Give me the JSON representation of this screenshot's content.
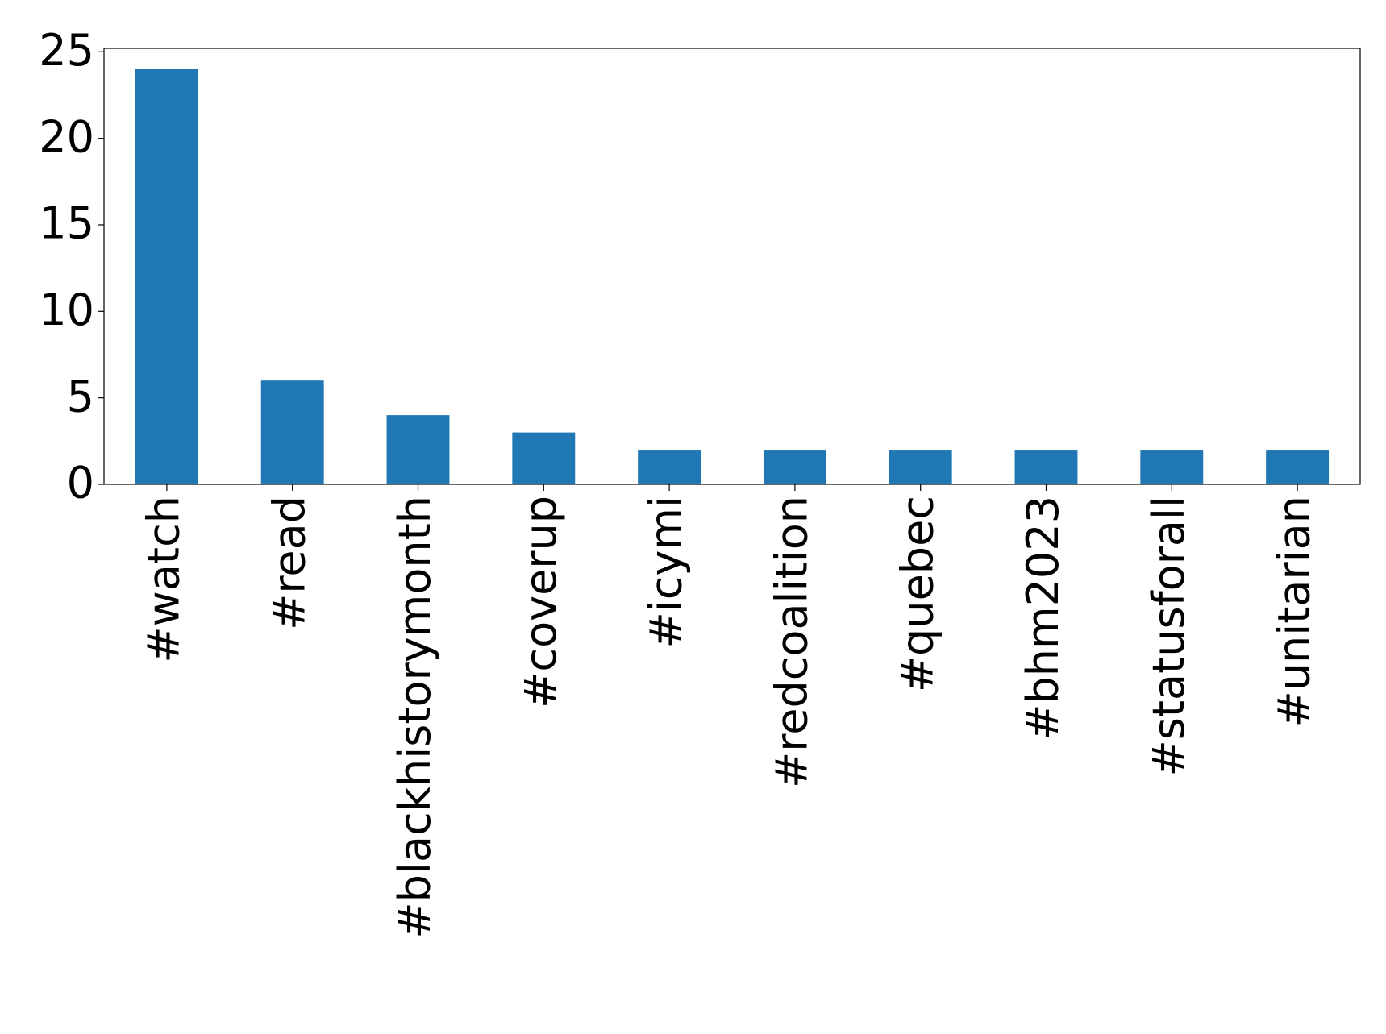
{
  "chart_data": {
    "type": "bar",
    "categories": [
      "#watch",
      "#read",
      "#blackhistorymonth",
      "#coverup",
      "#icymi",
      "#redcoalition",
      "#quebec",
      "#bhm2023",
      "#statusforall",
      "#unitarian"
    ],
    "values": [
      24,
      6,
      4,
      3,
      2,
      2,
      2,
      2,
      2,
      2
    ],
    "color": "#1f77b4",
    "ylim": [
      0,
      25.2
    ],
    "yticks": [
      0,
      5,
      10,
      15,
      20,
      25
    ],
    "grid": false
  }
}
